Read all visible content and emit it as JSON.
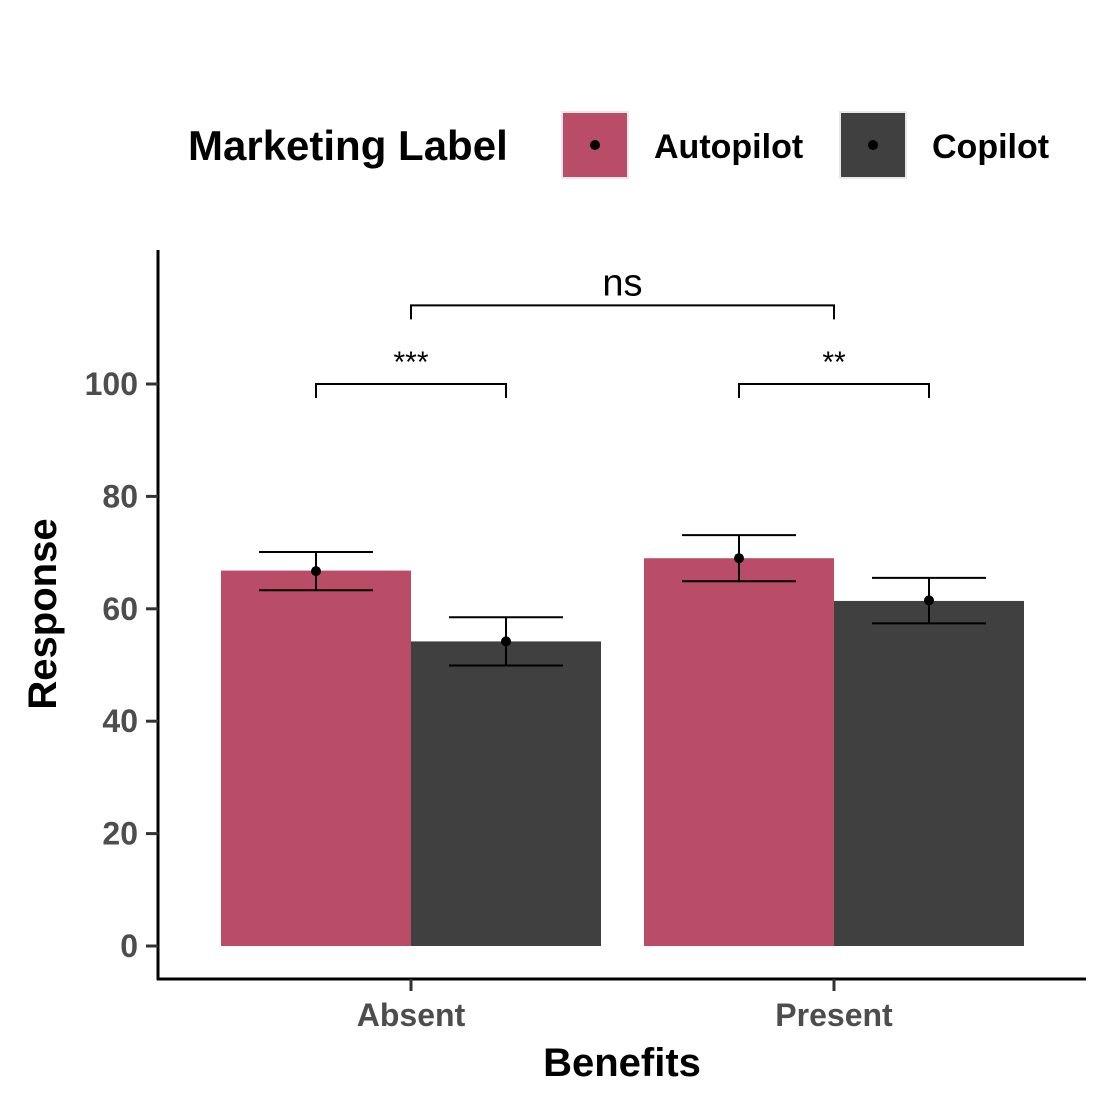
{
  "chart_data": {
    "type": "bar",
    "xlabel": "Benefits",
    "ylabel": "Response",
    "categories": [
      "Absent",
      "Present"
    ],
    "ylim": [
      -6,
      124
    ],
    "yticks": [
      0,
      20,
      40,
      60,
      80,
      100
    ],
    "ytick_labels": [
      "0",
      "20",
      "40",
      "60",
      "80",
      "100"
    ],
    "legend": {
      "title": "Marketing Label",
      "position": "top"
    },
    "series": [
      {
        "name": "Autopilot",
        "color": "#b94c66",
        "values": [
          66.8,
          69.0
        ],
        "points": [
          66.7,
          69.0
        ],
        "err_low": [
          63.3,
          64.9
        ],
        "err_high": [
          70.1,
          73.1
        ]
      },
      {
        "name": "Copilot",
        "color": "#404040",
        "values": [
          54.2,
          61.4
        ],
        "points": [
          54.2,
          61.5
        ],
        "err_low": [
          49.9,
          57.4
        ],
        "err_high": [
          58.5,
          65.5
        ]
      }
    ],
    "annotations": [
      {
        "label": "***",
        "type": "within",
        "category": 0,
        "y": 100
      },
      {
        "label": "**",
        "type": "within",
        "category": 1,
        "y": 100
      },
      {
        "label": "ns",
        "type": "between",
        "y": 114
      }
    ],
    "grid": false
  }
}
